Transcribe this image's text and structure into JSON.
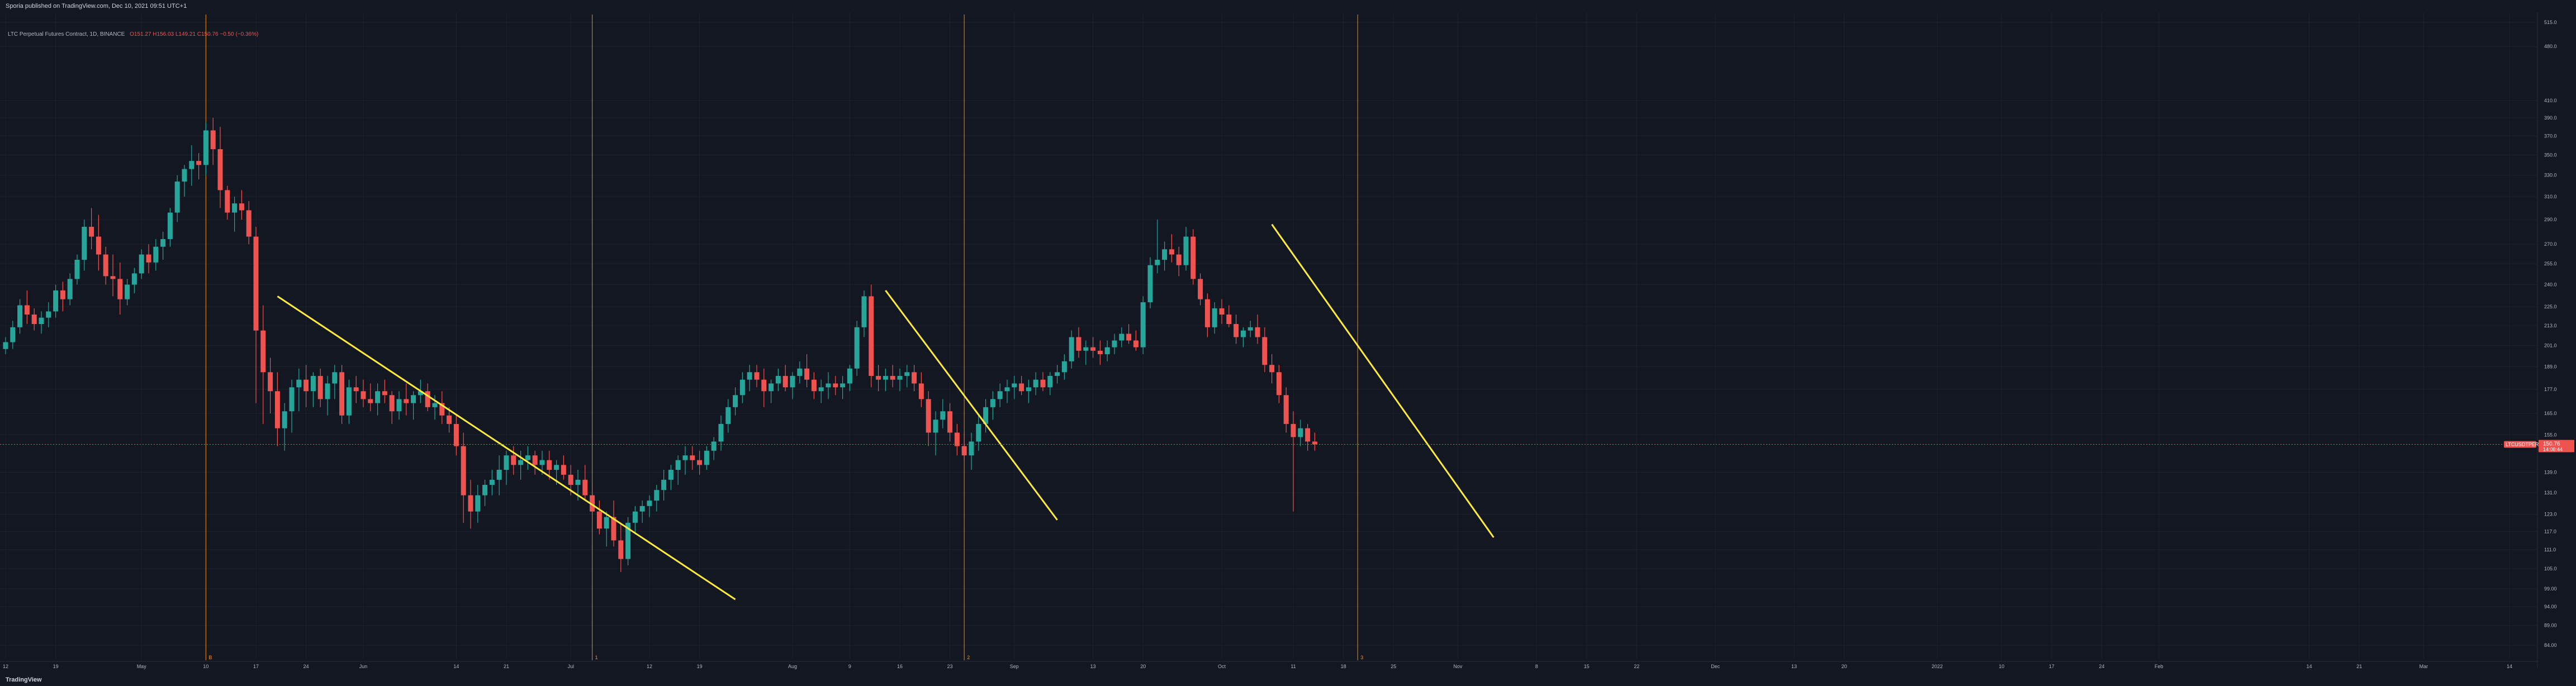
{
  "header": {
    "published_by": "Sporia published on TradingView.com, Dec 10, 2021 09:51 UTC+1"
  },
  "legend": {
    "symbol": "LTC Perpetual Futures Contract, 1D, BINANCE",
    "ohlc": "O151.27 H156.03 L149.21 C150.76 −0.50 (−0.36%)"
  },
  "price_badge": {
    "symbol": "LTCUSDTPERP",
    "price": "150.76",
    "countdown": "14:08:44"
  },
  "footer": {
    "brand": "TradingView"
  },
  "colors": {
    "up": "#26a69a",
    "down": "#ef5350",
    "trendline": "#ffeb3b",
    "marker": "#f7931a",
    "background": "#131722"
  },
  "chart_data": {
    "type": "candlestick",
    "y_scale": "log",
    "ylim": [
      82,
      520
    ],
    "y_ticks": [
      {
        "value": 515.0,
        "label": "515.0"
      },
      {
        "value": 480.0,
        "label": "480.0"
      },
      {
        "value": 410.0,
        "label": "410.0"
      },
      {
        "value": 390.0,
        "label": "390.0"
      },
      {
        "value": 370.0,
        "label": "370.0"
      },
      {
        "value": 350.0,
        "label": "350.0"
      },
      {
        "value": 330.0,
        "label": "330.0"
      },
      {
        "value": 310.0,
        "label": "310.0"
      },
      {
        "value": 290.0,
        "label": "290.0"
      },
      {
        "value": 270.0,
        "label": "270.0"
      },
      {
        "value": 255.0,
        "label": "255.0"
      },
      {
        "value": 240.0,
        "label": "240.0"
      },
      {
        "value": 225.0,
        "label": "225.0"
      },
      {
        "value": 213.0,
        "label": "213.0"
      },
      {
        "value": 201.0,
        "label": "201.0"
      },
      {
        "value": 189.0,
        "label": "189.0"
      },
      {
        "value": 177.0,
        "label": "177.0"
      },
      {
        "value": 165.0,
        "label": "165.0"
      },
      {
        "value": 155.0,
        "label": "155.0"
      },
      {
        "value": 139.0,
        "label": "139.0"
      },
      {
        "value": 131.0,
        "label": "131.0"
      },
      {
        "value": 123.0,
        "label": "123.0"
      },
      {
        "value": 117.0,
        "label": "117.0"
      },
      {
        "value": 111.0,
        "label": "111.0"
      },
      {
        "value": 105.0,
        "label": "105.0"
      },
      {
        "value": 99.0,
        "label": "99.00"
      },
      {
        "value": 94.0,
        "label": "94.00"
      },
      {
        "value": 89.0,
        "label": "89.00"
      },
      {
        "value": 84.0,
        "label": "84.00"
      }
    ],
    "x_ticks": [
      "12",
      "19",
      "May",
      "10",
      "17",
      "24",
      "Jun",
      "14",
      "21",
      "Jul",
      "12",
      "19",
      "Aug",
      "9",
      "16",
      "23",
      "Sep",
      "13",
      "20",
      "Oct",
      "11",
      "18",
      "25",
      "Nov",
      "8",
      "15",
      "22",
      "Dec",
      "13",
      "20",
      "2022",
      "10",
      "17",
      "24",
      "Feb",
      "14",
      "21",
      "Mar",
      "14"
    ],
    "x_tick_days": [
      0,
      7,
      19,
      28,
      35,
      42,
      50,
      63,
      70,
      79,
      90,
      97,
      110,
      118,
      125,
      132,
      141,
      152,
      159,
      170,
      180,
      187,
      194,
      203,
      214,
      221,
      228,
      239,
      250,
      257,
      270,
      279,
      286,
      293,
      301,
      322,
      329,
      338,
      350
    ],
    "candles": [
      [
        0,
        199,
        206,
        196,
        203
      ],
      [
        1,
        203,
        216,
        199,
        212
      ],
      [
        2,
        212,
        230,
        208,
        226
      ],
      [
        3,
        226,
        236,
        214,
        220
      ],
      [
        4,
        220,
        224,
        210,
        214
      ],
      [
        5,
        214,
        222,
        208,
        218
      ],
      [
        6,
        218,
        228,
        212,
        222
      ],
      [
        7,
        222,
        240,
        218,
        236
      ],
      [
        8,
        236,
        242,
        222,
        230
      ],
      [
        9,
        230,
        248,
        226,
        244
      ],
      [
        10,
        244,
        262,
        240,
        258
      ],
      [
        11,
        258,
        290,
        250,
        284
      ],
      [
        12,
        284,
        300,
        266,
        276
      ],
      [
        13,
        276,
        294,
        250,
        262
      ],
      [
        14,
        262,
        268,
        240,
        246
      ],
      [
        15,
        246,
        262,
        232,
        244
      ],
      [
        16,
        244,
        256,
        220,
        230
      ],
      [
        17,
        230,
        244,
        226,
        240
      ],
      [
        18,
        240,
        252,
        234,
        248
      ],
      [
        19,
        248,
        266,
        244,
        262
      ],
      [
        20,
        262,
        270,
        248,
        256
      ],
      [
        21,
        256,
        274,
        250,
        268
      ],
      [
        22,
        268,
        280,
        258,
        274
      ],
      [
        23,
        274,
        300,
        268,
        296
      ],
      [
        24,
        296,
        330,
        288,
        324
      ],
      [
        25,
        324,
        340,
        310,
        336
      ],
      [
        26,
        336,
        360,
        320,
        344
      ],
      [
        27,
        344,
        352,
        326,
        340
      ],
      [
        28,
        340,
        385,
        330,
        376
      ],
      [
        29,
        376,
        390,
        340,
        356
      ],
      [
        30,
        356,
        380,
        300,
        316
      ],
      [
        31,
        316,
        320,
        290,
        296
      ],
      [
        32,
        296,
        310,
        280,
        304
      ],
      [
        33,
        304,
        316,
        290,
        298
      ],
      [
        34,
        298,
        306,
        270,
        276
      ],
      [
        35,
        276,
        284,
        170,
        210
      ],
      [
        36,
        210,
        226,
        160,
        186
      ],
      [
        37,
        186,
        194,
        165,
        176
      ],
      [
        38,
        176,
        186,
        150,
        158
      ],
      [
        39,
        158,
        170,
        148,
        166
      ],
      [
        40,
        166,
        182,
        156,
        178
      ],
      [
        41,
        178,
        188,
        166,
        182
      ],
      [
        42,
        182,
        190,
        168,
        176
      ],
      [
        43,
        176,
        186,
        168,
        184
      ],
      [
        44,
        184,
        188,
        168,
        172
      ],
      [
        45,
        172,
        184,
        164,
        180
      ],
      [
        46,
        180,
        190,
        172,
        186
      ],
      [
        47,
        186,
        190,
        160,
        164
      ],
      [
        48,
        164,
        182,
        160,
        178
      ],
      [
        49,
        178,
        184,
        170,
        176
      ],
      [
        50,
        176,
        182,
        168,
        172
      ],
      [
        51,
        172,
        180,
        166,
        170
      ],
      [
        52,
        170,
        180,
        164,
        176
      ],
      [
        53,
        176,
        182,
        170,
        174
      ],
      [
        54,
        174,
        176,
        160,
        166
      ],
      [
        55,
        166,
        176,
        162,
        172
      ],
      [
        56,
        172,
        180,
        164,
        170
      ],
      [
        57,
        170,
        176,
        162,
        174
      ],
      [
        58,
        174,
        182,
        170,
        176
      ],
      [
        59,
        176,
        180,
        166,
        168
      ],
      [
        60,
        168,
        174,
        162,
        170
      ],
      [
        61,
        170,
        176,
        160,
        164
      ],
      [
        62,
        164,
        168,
        156,
        160
      ],
      [
        63,
        160,
        164,
        146,
        150
      ],
      [
        64,
        150,
        156,
        120,
        130
      ],
      [
        65,
        130,
        136,
        118,
        124
      ],
      [
        66,
        124,
        134,
        120,
        130
      ],
      [
        67,
        130,
        136,
        126,
        134
      ],
      [
        68,
        134,
        140,
        130,
        136
      ],
      [
        69,
        136,
        146,
        130,
        140
      ],
      [
        70,
        140,
        148,
        134,
        146
      ],
      [
        71,
        146,
        150,
        138,
        142
      ],
      [
        72,
        142,
        148,
        136,
        144
      ],
      [
        73,
        144,
        150,
        140,
        146
      ],
      [
        74,
        146,
        148,
        138,
        142
      ],
      [
        75,
        142,
        148,
        138,
        144
      ],
      [
        76,
        144,
        148,
        136,
        140
      ],
      [
        77,
        140,
        144,
        134,
        142
      ],
      [
        78,
        142,
        146,
        136,
        138
      ],
      [
        79,
        138,
        142,
        130,
        134
      ],
      [
        80,
        134,
        140,
        128,
        136
      ],
      [
        81,
        136,
        142,
        128,
        130
      ],
      [
        82,
        130,
        134,
        120,
        124
      ],
      [
        83,
        124,
        128,
        116,
        118
      ],
      [
        84,
        118,
        124,
        112,
        122
      ],
      [
        85,
        122,
        128,
        112,
        114
      ],
      [
        86,
        114,
        120,
        104,
        108
      ],
      [
        87,
        108,
        122,
        106,
        120
      ],
      [
        88,
        120,
        126,
        116,
        124
      ],
      [
        89,
        124,
        128,
        120,
        126
      ],
      [
        90,
        126,
        130,
        122,
        128
      ],
      [
        91,
        128,
        134,
        124,
        132
      ],
      [
        92,
        132,
        140,
        128,
        136
      ],
      [
        93,
        136,
        142,
        132,
        140
      ],
      [
        94,
        140,
        146,
        134,
        144
      ],
      [
        95,
        144,
        150,
        138,
        146
      ],
      [
        96,
        146,
        150,
        140,
        144
      ],
      [
        97,
        144,
        148,
        138,
        142
      ],
      [
        98,
        142,
        150,
        140,
        148
      ],
      [
        99,
        148,
        154,
        144,
        152
      ],
      [
        100,
        152,
        164,
        148,
        160
      ],
      [
        101,
        160,
        172,
        156,
        168
      ],
      [
        102,
        168,
        178,
        164,
        174
      ],
      [
        103,
        174,
        186,
        170,
        182
      ],
      [
        104,
        182,
        190,
        176,
        186
      ],
      [
        105,
        186,
        190,
        178,
        182
      ],
      [
        106,
        182,
        188,
        168,
        176
      ],
      [
        107,
        176,
        182,
        170,
        180
      ],
      [
        108,
        180,
        188,
        176,
        184
      ],
      [
        109,
        184,
        190,
        176,
        178
      ],
      [
        110,
        178,
        186,
        172,
        184
      ],
      [
        111,
        184,
        192,
        180,
        188
      ],
      [
        112,
        188,
        196,
        178,
        182
      ],
      [
        113,
        182,
        186,
        172,
        176
      ],
      [
        114,
        176,
        182,
        170,
        178
      ],
      [
        115,
        178,
        186,
        172,
        180
      ],
      [
        116,
        180,
        184,
        174,
        178
      ],
      [
        117,
        178,
        184,
        172,
        180
      ],
      [
        118,
        180,
        190,
        176,
        188
      ],
      [
        119,
        188,
        216,
        184,
        212
      ],
      [
        120,
        212,
        236,
        206,
        232
      ],
      [
        121,
        232,
        240,
        178,
        184
      ],
      [
        122,
        184,
        190,
        176,
        182
      ],
      [
        123,
        182,
        188,
        176,
        184
      ],
      [
        124,
        184,
        190,
        178,
        182
      ],
      [
        125,
        182,
        188,
        176,
        184
      ],
      [
        126,
        184,
        190,
        178,
        186
      ],
      [
        127,
        186,
        190,
        176,
        180
      ],
      [
        128,
        180,
        186,
        168,
        172
      ],
      [
        129,
        172,
        176,
        150,
        156
      ],
      [
        130,
        156,
        166,
        146,
        162
      ],
      [
        131,
        162,
        172,
        158,
        166
      ],
      [
        132,
        166,
        170,
        152,
        156
      ],
      [
        133,
        156,
        160,
        146,
        150
      ],
      [
        134,
        150,
        156,
        144,
        146
      ],
      [
        135,
        146,
        156,
        140,
        152
      ],
      [
        136,
        152,
        164,
        148,
        160
      ],
      [
        137,
        160,
        172,
        156,
        168
      ],
      [
        138,
        168,
        176,
        162,
        172
      ],
      [
        139,
        172,
        180,
        168,
        176
      ],
      [
        140,
        176,
        182,
        170,
        178
      ],
      [
        141,
        178,
        184,
        172,
        180
      ],
      [
        142,
        180,
        184,
        174,
        176
      ],
      [
        143,
        176,
        182,
        170,
        178
      ],
      [
        144,
        178,
        186,
        174,
        182
      ],
      [
        145,
        182,
        186,
        176,
        178
      ],
      [
        146,
        178,
        186,
        174,
        184
      ],
      [
        147,
        184,
        190,
        180,
        186
      ],
      [
        148,
        186,
        196,
        182,
        192
      ],
      [
        149,
        192,
        210,
        188,
        206
      ],
      [
        150,
        206,
        212,
        194,
        198
      ],
      [
        151,
        198,
        204,
        190,
        200
      ],
      [
        152,
        200,
        206,
        194,
        198
      ],
      [
        153,
        198,
        204,
        190,
        196
      ],
      [
        154,
        196,
        204,
        192,
        200
      ],
      [
        155,
        200,
        208,
        196,
        204
      ],
      [
        156,
        204,
        212,
        200,
        208
      ],
      [
        157,
        208,
        214,
        202,
        204
      ],
      [
        158,
        204,
        210,
        198,
        200
      ],
      [
        159,
        200,
        232,
        196,
        228
      ],
      [
        160,
        228,
        260,
        224,
        254
      ],
      [
        161,
        254,
        290,
        248,
        258
      ],
      [
        162,
        258,
        272,
        250,
        266
      ],
      [
        163,
        266,
        278,
        256,
        262
      ],
      [
        164,
        262,
        268,
        246,
        254
      ],
      [
        165,
        254,
        284,
        250,
        276
      ],
      [
        166,
        276,
        282,
        240,
        244
      ],
      [
        167,
        244,
        248,
        226,
        230
      ],
      [
        168,
        230,
        234,
        206,
        212
      ],
      [
        169,
        212,
        228,
        208,
        224
      ],
      [
        170,
        224,
        230,
        214,
        220
      ],
      [
        171,
        220,
        226,
        212,
        214
      ],
      [
        172,
        214,
        220,
        202,
        206
      ],
      [
        173,
        206,
        212,
        200,
        210
      ],
      [
        174,
        210,
        216,
        206,
        212
      ],
      [
        175,
        212,
        220,
        202,
        206
      ],
      [
        176,
        206,
        212,
        186,
        190
      ],
      [
        177,
        190,
        196,
        180,
        186
      ],
      [
        178,
        186,
        190,
        170,
        174
      ],
      [
        179,
        174,
        178,
        156,
        160
      ],
      [
        180,
        160,
        166,
        124,
        154
      ],
      [
        181,
        154,
        162,
        150,
        158
      ],
      [
        182,
        158,
        160,
        148,
        152
      ],
      [
        183,
        152,
        156,
        148,
        150.76
      ]
    ],
    "trendlines": [
      {
        "from": [
          38,
          232
        ],
        "to": [
          102,
          96
        ]
      },
      {
        "from": [
          123,
          236
        ],
        "to": [
          147,
          121
        ]
      },
      {
        "from": [
          177,
          286
        ],
        "to": [
          208,
          115
        ]
      }
    ],
    "vertical_markers": [
      {
        "day": 28,
        "label": "B"
      },
      {
        "day": 82,
        "label": "1"
      },
      {
        "day": 134,
        "label": "2"
      },
      {
        "day": 189,
        "label": "3"
      }
    ],
    "last_price": 150.76
  }
}
